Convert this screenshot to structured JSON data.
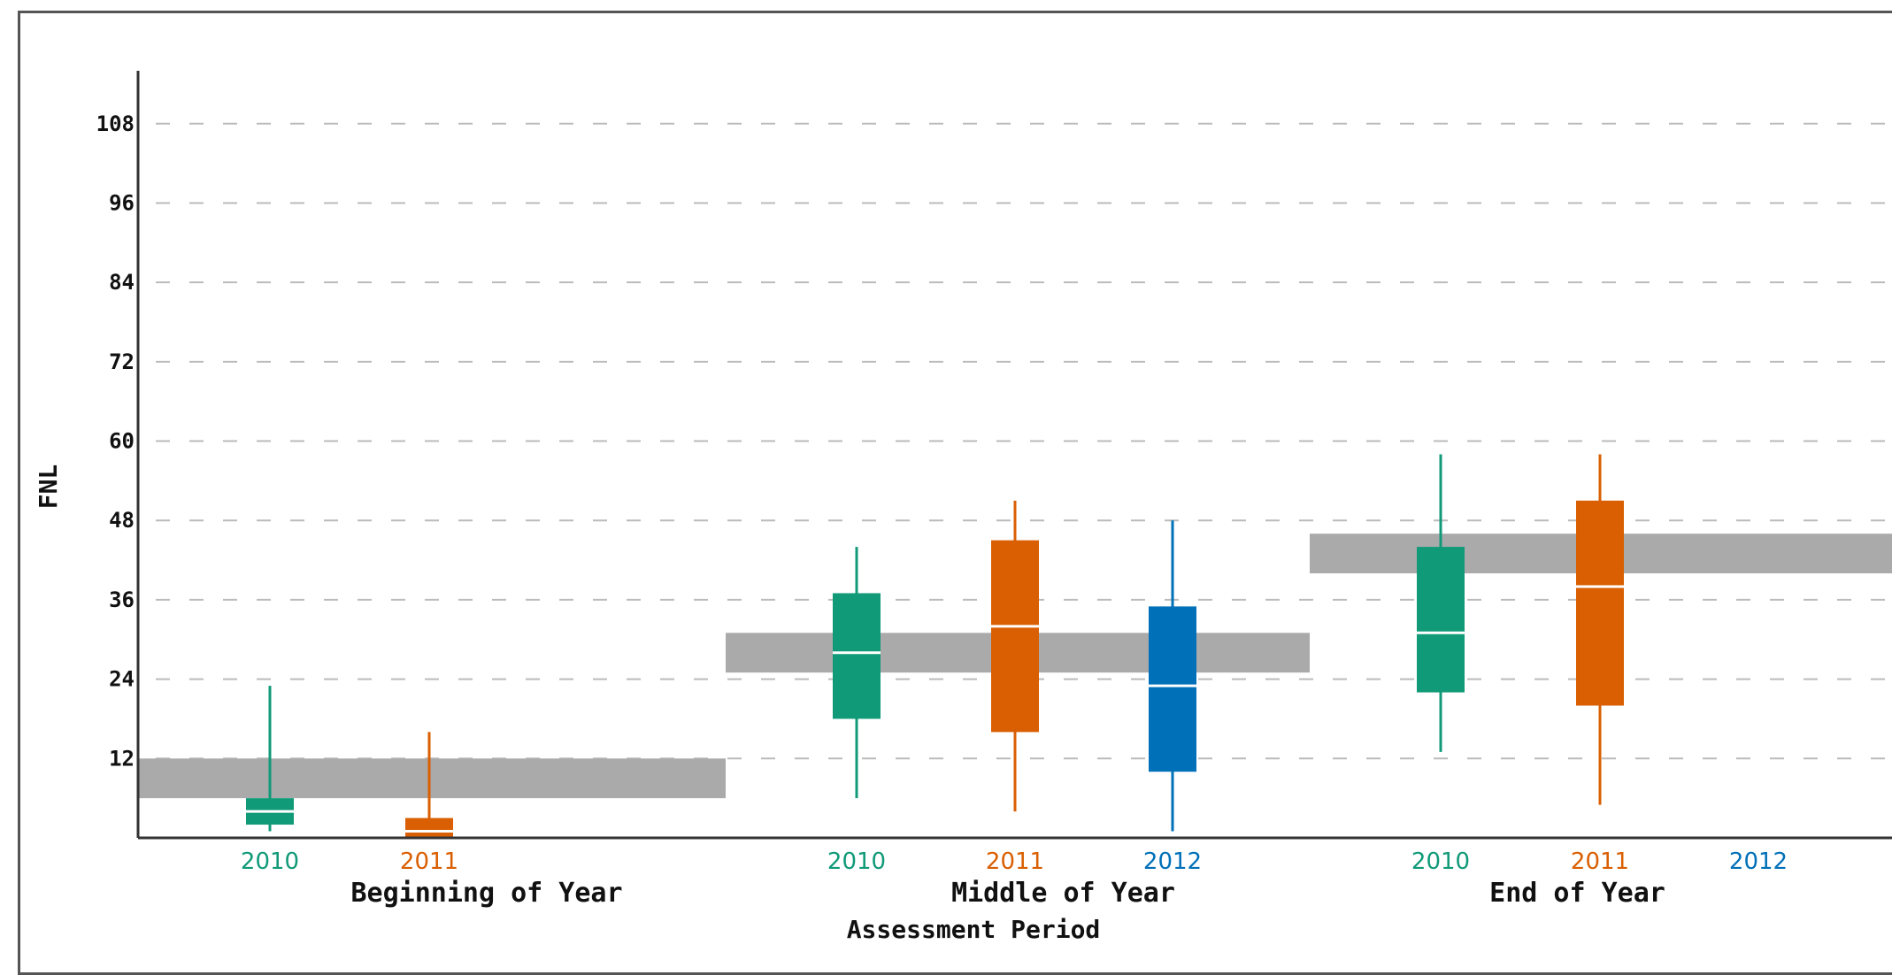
{
  "chart_data": {
    "type": "box",
    "title": "",
    "xlabel": "Assessment Period",
    "ylabel": "FNL",
    "ylim": [
      0,
      116
    ],
    "yticks": [
      12,
      24,
      36,
      48,
      60,
      72,
      84,
      96,
      108
    ],
    "grid": true,
    "colors": {
      "2010": "#109a78",
      "2011": "#d95f02",
      "2012": "#0070b8",
      "benchmark": "#aaaaaa"
    },
    "categories": [
      {
        "name": "Beginning of Year",
        "benchmark": [
          6,
          12
        ],
        "years": [
          {
            "year": "2010",
            "min": 1,
            "q1": 2,
            "median": 4,
            "q3": 6,
            "max": 23
          },
          {
            "year": "2011",
            "min": 0,
            "q1": 0,
            "median": 1,
            "q3": 3,
            "max": 16
          }
        ]
      },
      {
        "name": "Middle of Year",
        "benchmark": [
          25,
          31
        ],
        "years": [
          {
            "year": "2010",
            "min": 6,
            "q1": 18,
            "median": 28,
            "q3": 37,
            "max": 44
          },
          {
            "year": "2011",
            "min": 4,
            "q1": 16,
            "median": 32,
            "q3": 45,
            "max": 51
          },
          {
            "year": "2012",
            "min": 1,
            "q1": 10,
            "median": 23,
            "q3": 35,
            "max": 48
          }
        ]
      },
      {
        "name": "End of Year",
        "benchmark": [
          40,
          46
        ],
        "years": [
          {
            "year": "2010",
            "min": 13,
            "q1": 22,
            "median": 31,
            "q3": 44,
            "max": 58
          },
          {
            "year": "2011",
            "min": 5,
            "q1": 20,
            "median": 38,
            "q3": 51,
            "max": 58
          },
          {
            "year": "2012"
          }
        ]
      }
    ]
  }
}
